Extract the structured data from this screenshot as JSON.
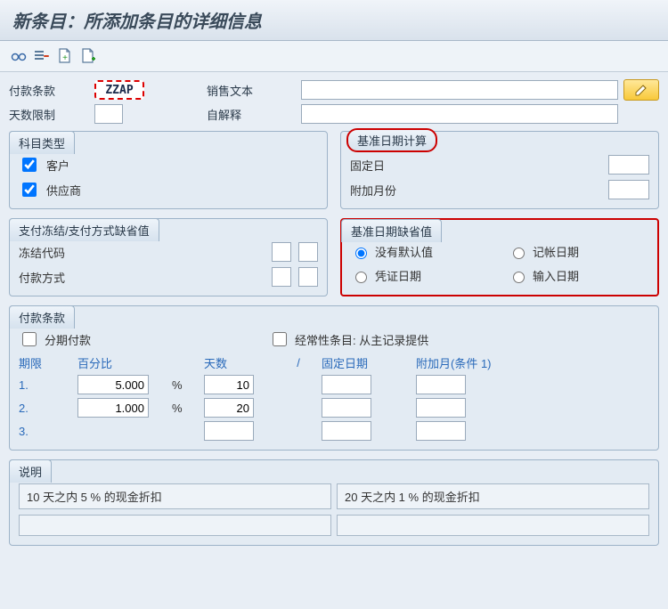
{
  "title": "新条目：所添加条目的详细信息",
  "toolbar": {
    "icon1": "glasses-icon",
    "icon2": "list-delete-icon",
    "icon3": "doc-new-icon",
    "icon4": "doc-add-icon"
  },
  "top": {
    "payment_terms_label": "付款条款",
    "payment_terms_value": "ZZAP",
    "sales_text_label": "销售文本",
    "sales_text_value": "",
    "days_limit_label": "天数限制",
    "days_limit_value": "",
    "self_explain_label": "自解释",
    "self_explain_value": ""
  },
  "account_type": {
    "title": "科目类型",
    "customer_label": "客户",
    "customer_checked": true,
    "vendor_label": "供应商",
    "vendor_checked": true
  },
  "baseline_calc": {
    "title": "基准日期计算",
    "fixed_day_label": "固定日",
    "fixed_day_value": "",
    "add_months_label": "附加月份",
    "add_months_value": ""
  },
  "block": {
    "title": "支付冻结/支付方式缺省值",
    "block_code_label": "冻结代码",
    "block_code_value": "",
    "payment_method_label": "付款方式",
    "payment_method_value": ""
  },
  "baseline_default": {
    "title": "基准日期缺省值",
    "no_default": "没有默认值",
    "posting_date": "记帐日期",
    "doc_date": "凭证日期",
    "entry_date": "输入日期",
    "selected": "no_default"
  },
  "terms": {
    "title": "付款条款",
    "installment_label": "分期付款",
    "recurring_label": "经常性条目: 从主记录提供",
    "col_period": "期限",
    "col_percent": "百分比",
    "col_days": "天数",
    "col_fixed_date": "固定日期",
    "col_add_month": "附加月(条件 1)",
    "rows": [
      {
        "idx": "1.",
        "percent": "5.000",
        "days": "10",
        "fixed": "",
        "addm": ""
      },
      {
        "idx": "2.",
        "percent": "1.000",
        "days": "20",
        "fixed": "",
        "addm": ""
      },
      {
        "idx": "3.",
        "percent": "",
        "days": "",
        "fixed": "",
        "addm": ""
      }
    ]
  },
  "desc": {
    "title": "说明",
    "cell1": "10 天之内 5 % 的现金折扣",
    "cell2": "20 天之内 1 % 的现金折扣",
    "cell3": "",
    "cell4": ""
  }
}
